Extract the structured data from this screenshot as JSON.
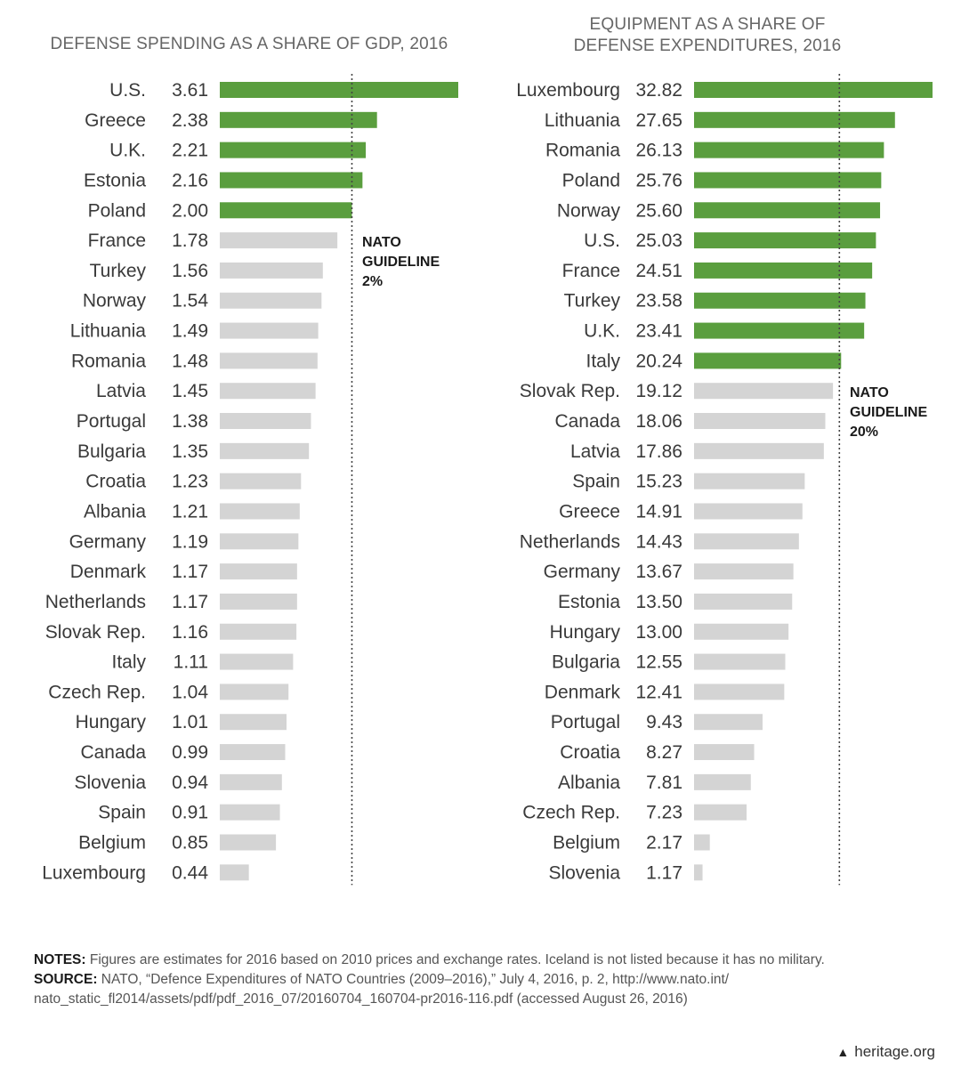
{
  "chart_data": [
    {
      "type": "bar",
      "orientation": "horizontal",
      "title": "DEFENSE SPENDING AS A SHARE OF GDP, 2016",
      "categories": [
        "U.S.",
        "Greece",
        "U.K.",
        "Estonia",
        "Poland",
        "France",
        "Turkey",
        "Norway",
        "Lithuania",
        "Romania",
        "Latvia",
        "Portugal",
        "Bulgaria",
        "Croatia",
        "Albania",
        "Germany",
        "Denmark",
        "Netherlands",
        "Slovak Rep.",
        "Italy",
        "Czech Rep.",
        "Hungary",
        "Canada",
        "Slovenia",
        "Spain",
        "Belgium",
        "Luxembourg"
      ],
      "values": [
        3.61,
        2.38,
        2.21,
        2.16,
        2.0,
        1.78,
        1.56,
        1.54,
        1.49,
        1.48,
        1.45,
        1.38,
        1.35,
        1.23,
        1.21,
        1.19,
        1.17,
        1.17,
        1.16,
        1.11,
        1.04,
        1.01,
        0.99,
        0.94,
        0.91,
        0.85,
        0.44
      ],
      "value_labels": [
        "3.61",
        "2.38",
        "2.21",
        "2.16",
        "2.00",
        "1.78",
        "1.56",
        "1.54",
        "1.49",
        "1.48",
        "1.45",
        "1.38",
        "1.35",
        "1.23",
        "1.21",
        "1.19",
        "1.17",
        "1.17",
        "1.16",
        "1.11",
        "1.04",
        "1.01",
        "0.99",
        "0.94",
        "0.91",
        "0.85",
        "0.44"
      ],
      "xlim": [
        0,
        3.61
      ],
      "guideline": {
        "value": 2.0,
        "label_lines": [
          "NATO",
          "GUIDELINE",
          "2%"
        ]
      },
      "colors": {
        "meets": "#5a9e3e",
        "below": "#d4d4d4"
      }
    },
    {
      "type": "bar",
      "orientation": "horizontal",
      "title": "EQUIPMENT AS A SHARE OF DEFENSE EXPENDITURES, 2016",
      "title_lines": [
        "EQUIPMENT AS A SHARE OF",
        "DEFENSE EXPENDITURES, 2016"
      ],
      "categories": [
        "Luxembourg",
        "Lithuania",
        "Romania",
        "Poland",
        "Norway",
        "U.S.",
        "France",
        "Turkey",
        "U.K.",
        "Italy",
        "Slovak Rep.",
        "Canada",
        "Latvia",
        "Spain",
        "Greece",
        "Netherlands",
        "Germany",
        "Estonia",
        "Hungary",
        "Bulgaria",
        "Denmark",
        "Portugal",
        "Croatia",
        "Albania",
        "Czech Rep.",
        "Belgium",
        "Slovenia"
      ],
      "values": [
        32.82,
        27.65,
        26.13,
        25.76,
        25.6,
        25.03,
        24.51,
        23.58,
        23.41,
        20.24,
        19.12,
        18.06,
        17.86,
        15.23,
        14.91,
        14.43,
        13.67,
        13.5,
        13.0,
        12.55,
        12.41,
        9.43,
        8.27,
        7.81,
        7.23,
        2.17,
        1.17
      ],
      "value_labels": [
        "32.82",
        "27.65",
        "26.13",
        "25.76",
        "25.60",
        "25.03",
        "24.51",
        "23.58",
        "23.41",
        "20.24",
        "19.12",
        "18.06",
        "17.86",
        "15.23",
        "14.91",
        "14.43",
        "13.67",
        "13.50",
        "13.00",
        "12.55",
        "12.41",
        "9.43",
        "8.27",
        "7.81",
        "7.23",
        "2.17",
        "1.17"
      ],
      "xlim": [
        0,
        32.82
      ],
      "guideline": {
        "value": 20.0,
        "label_lines": [
          "NATO",
          "GUIDELINE",
          "20%"
        ]
      },
      "colors": {
        "meets": "#5a9e3e",
        "below": "#d4d4d4"
      }
    }
  ],
  "notes": {
    "notes_label": "NOTES:",
    "notes_text": " Figures are estimates for 2016 based on 2010 prices and exchange rates. Iceland is not listed because it has no military.",
    "source_label": "SOURCE:",
    "source_text": " NATO, “Defence Expenditures of NATO Countries (2009–2016),” July 4, 2016, p. 2, http://www.nato.int/",
    "source_text_2": "nato_static_fl2014/assets/pdf/pdf_2016_07/20160704_160704-pr2016-116.pdf (accessed August 26, 2016)"
  },
  "footer": {
    "site": "heritage.org",
    "icon": "liberty-bell-icon"
  }
}
